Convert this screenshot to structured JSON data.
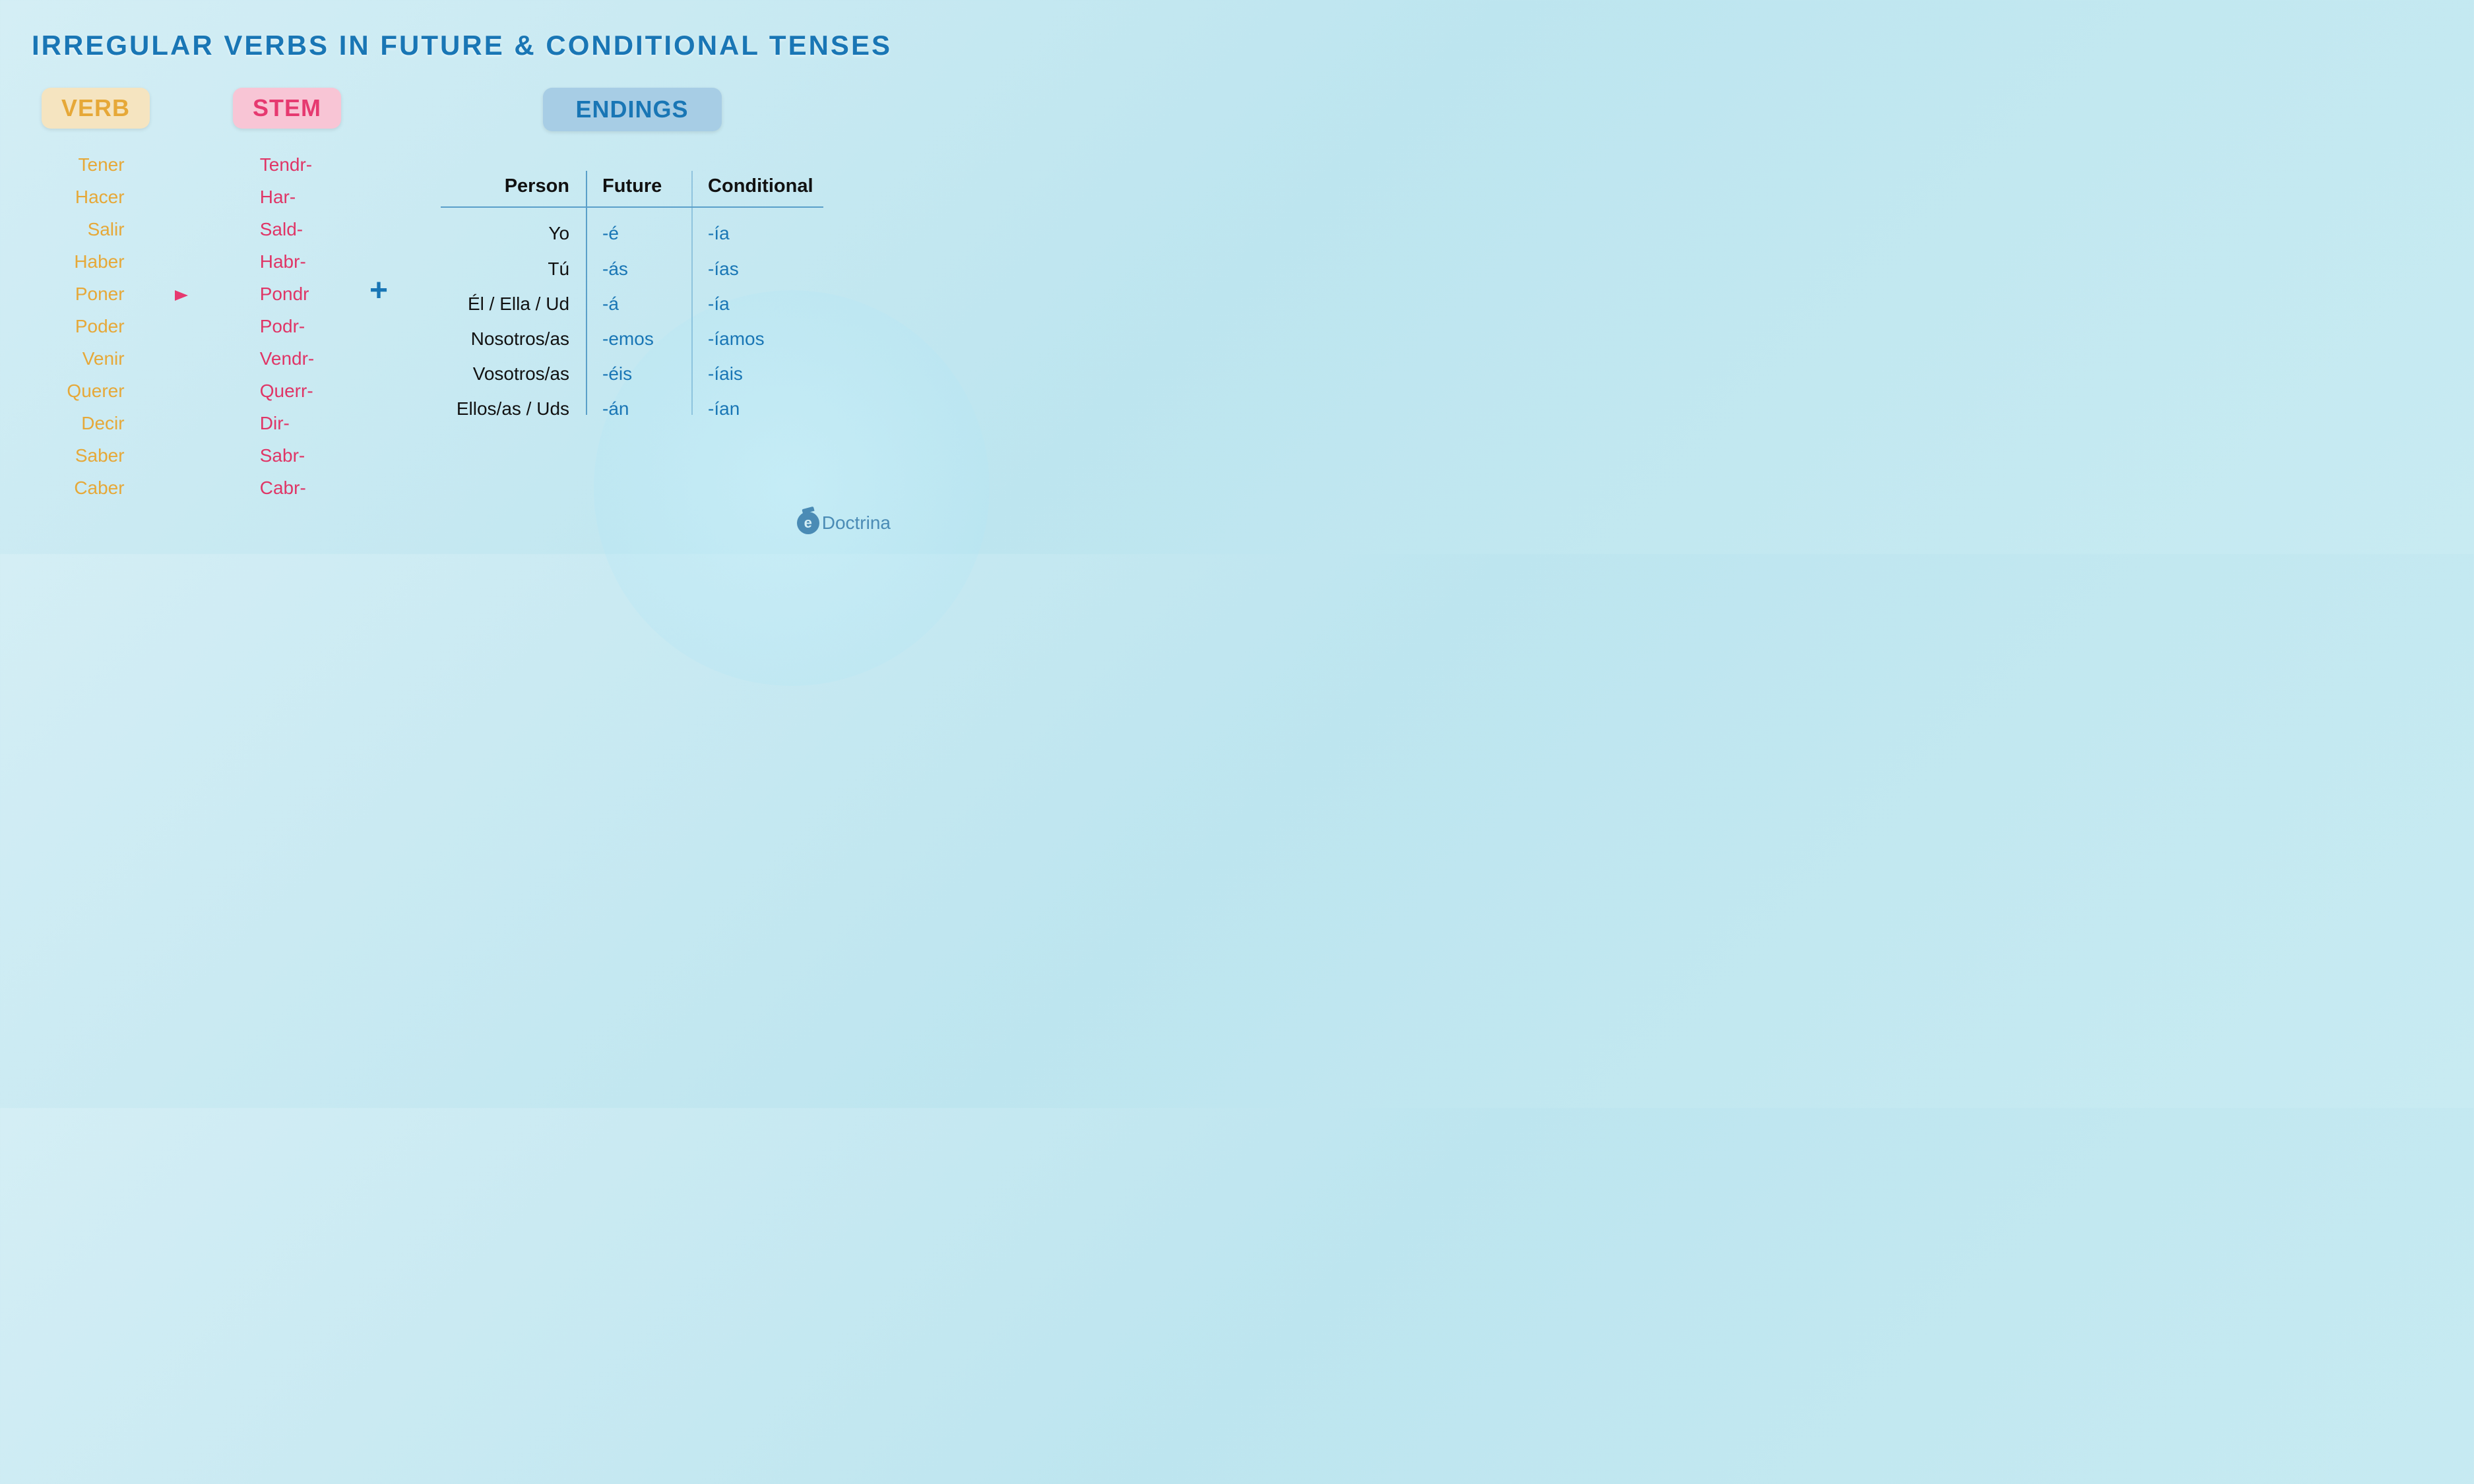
{
  "title": "IRREGULAR VERBS IN FUTURE & CONDITIONAL TENSES",
  "labels": {
    "verb": "VERB",
    "stem": "STEM",
    "endings": "ENDINGS",
    "plus": "+"
  },
  "colors": {
    "title": "#1976b5",
    "verb_pill_bg": "#f5e4c0",
    "verb_text": "#e6a838",
    "stem_pill_bg": "#f8c5d5",
    "stem_text": "#e03566",
    "endings_pill_bg": "#a7cde5",
    "endings_text": "#1976b5",
    "table_line": "#5a9fc9",
    "background_from": "#d4eef5",
    "background_to": "#c8ebf2"
  },
  "typography": {
    "title_fontsize": 42,
    "pill_fontsize": 36,
    "list_fontsize": 28,
    "table_fontsize": 28,
    "plus_fontsize": 48
  },
  "verbs": [
    "Tener",
    "Hacer",
    "Salir",
    "Haber",
    "Poner",
    "Poder",
    "Venir",
    "Querer",
    "Decir",
    "Saber",
    "Caber"
  ],
  "stems": [
    "Tendr-",
    "Har-",
    "Sald-",
    "Habr-",
    "Pondr",
    "Podr-",
    "Vendr-",
    "Querr-",
    "Dir-",
    "Sabr-",
    "Cabr-"
  ],
  "arrow_row_index": 5,
  "endings_table": {
    "columns": [
      "Person",
      "Future",
      "Conditional"
    ],
    "rows": [
      [
        "Yo",
        "-é",
        "-ía"
      ],
      [
        "Tú",
        "-ás",
        "-ías"
      ],
      [
        "Él / Ella / Ud",
        "-á",
        "-ía"
      ],
      [
        "Nosotros/as",
        "-emos",
        "-íamos"
      ],
      [
        "Vosotros/as",
        "-éis",
        "-íais"
      ],
      [
        "Ellos/as / Uds",
        "-án",
        "-ían"
      ]
    ]
  },
  "logo": {
    "icon_letter": "e",
    "text": "Doctrina"
  }
}
